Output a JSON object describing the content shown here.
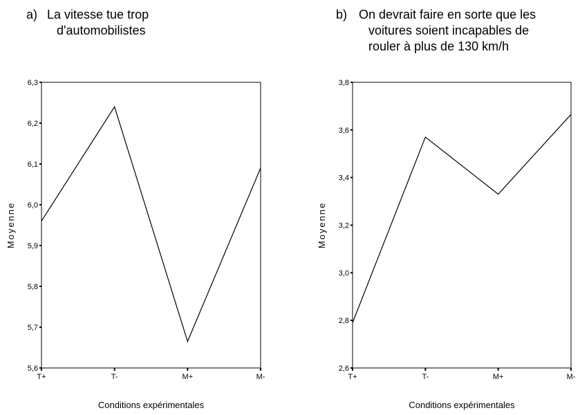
{
  "chart_data": [
    {
      "type": "line",
      "panel_label": "a)",
      "title": [
        "La vitesse tue trop",
        "d'automobilistes"
      ],
      "xlabel": "Conditions expérimentales",
      "ylabel": "Moyenne",
      "categories": [
        "T+",
        "T-",
        "M+",
        "M-"
      ],
      "series": [
        {
          "values": [
            5.96,
            6.24,
            5.665,
            6.09
          ]
        }
      ],
      "ylim": [
        5.6,
        6.3
      ],
      "yticks": [
        "5,6",
        "5,7",
        "5,8",
        "5,9",
        "6,0",
        "6,1",
        "6,2",
        "6,3"
      ],
      "grid": false
    },
    {
      "type": "line",
      "panel_label": "b)",
      "title": [
        "On devrait faire en sorte que les",
        "voitures soient incapables de",
        "rouler à plus de 130 km/h"
      ],
      "xlabel": "Conditions expérimentales",
      "ylabel": "Moyenne",
      "categories": [
        "T+",
        "T-",
        "M+",
        "M-"
      ],
      "series": [
        {
          "values": [
            2.79,
            3.57,
            3.33,
            3.665
          ]
        }
      ],
      "ylim": [
        2.6,
        3.8
      ],
      "yticks": [
        "2,6",
        "2,8",
        "3,0",
        "3,2",
        "3,4",
        "3,6",
        "3,8"
      ],
      "grid": false
    }
  ]
}
